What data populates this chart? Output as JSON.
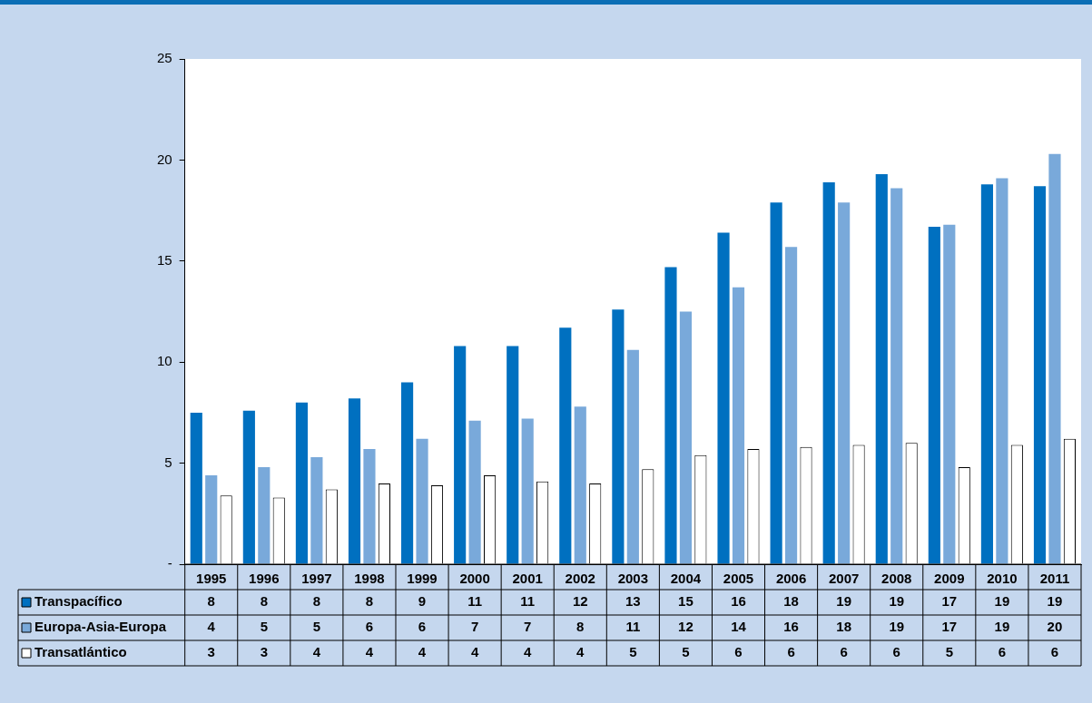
{
  "chart_data": {
    "type": "bar",
    "categories": [
      "1995",
      "1996",
      "1997",
      "1998",
      "1999",
      "2000",
      "2001",
      "2002",
      "2003",
      "2004",
      "2005",
      "2006",
      "2007",
      "2008",
      "2009",
      "2010",
      "2011"
    ],
    "series": [
      {
        "name": "Transpacífico",
        "color": "#0070c0",
        "values": [
          7.5,
          7.6,
          8.0,
          8.2,
          9.0,
          10.8,
          10.8,
          11.7,
          12.6,
          14.7,
          16.4,
          17.9,
          18.9,
          19.3,
          16.7,
          18.8,
          18.7
        ],
        "value_labels": [
          "8",
          "8",
          "8",
          "8",
          "9",
          "11",
          "11",
          "12",
          "13",
          "15",
          "16",
          "18",
          "19",
          "19",
          "17",
          "19",
          "19"
        ]
      },
      {
        "name": "Europa-Asia-Europa",
        "color": "#79a9da",
        "values": [
          4.4,
          4.8,
          5.3,
          5.7,
          6.2,
          7.1,
          7.2,
          7.8,
          10.6,
          12.5,
          13.7,
          15.7,
          17.9,
          18.6,
          16.8,
          19.1,
          20.3
        ],
        "value_labels": [
          "4",
          "5",
          "5",
          "6",
          "6",
          "7",
          "7",
          "8",
          "11",
          "12",
          "14",
          "16",
          "18",
          "19",
          "17",
          "19",
          "20"
        ]
      },
      {
        "name": "Transatlántico",
        "color": "#ffffff",
        "values": [
          3.4,
          3.3,
          3.7,
          4.0,
          3.9,
          4.4,
          4.1,
          4.0,
          4.7,
          5.4,
          5.7,
          5.8,
          5.9,
          6.0,
          4.8,
          5.9,
          6.2
        ],
        "value_labels": [
          "3",
          "3",
          "4",
          "4",
          "4",
          "4",
          "4",
          "4",
          "5",
          "5",
          "6",
          "6",
          "6",
          "6",
          "5",
          "6",
          "6"
        ]
      }
    ],
    "ylim": [
      0,
      25
    ],
    "yticks": [
      {
        "value": 0,
        "label": "-"
      },
      5,
      10,
      15,
      20,
      25
    ],
    "grid": false,
    "legend": "bottom"
  }
}
